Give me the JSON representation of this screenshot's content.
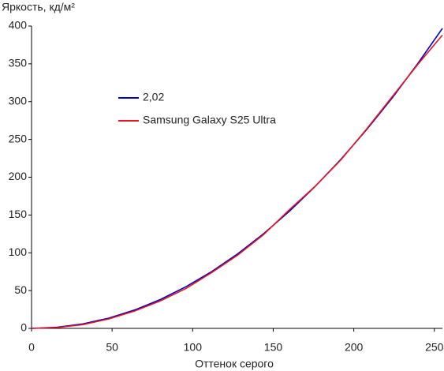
{
  "chart_data": {
    "type": "line",
    "y_label": "Яркость, кд/м²",
    "x_label": "Оттенок серого",
    "x": [
      0,
      16,
      32,
      48,
      64,
      80,
      96,
      112,
      128,
      144,
      160,
      176,
      192,
      208,
      224,
      240,
      255
    ],
    "series": [
      {
        "name": "2,02",
        "color": "#0000cc",
        "values": [
          0,
          1.5,
          6,
          13.6,
          24.3,
          38.2,
          55.2,
          75.4,
          98.7,
          125.2,
          154.9,
          187.8,
          223.7,
          263.1,
          305.4,
          351.3,
          397
        ]
      },
      {
        "name": "Samsung Galaxy S25 Ultra",
        "color": "#e8141e",
        "values": [
          0,
          1,
          5,
          12.5,
          23,
          36.5,
          53,
          74,
          97,
          124,
          157,
          188,
          223,
          264,
          307,
          350,
          388
        ]
      }
    ],
    "xlim": [
      0,
      255
    ],
    "ylim": [
      0,
      400
    ],
    "xticks": [
      0,
      50,
      100,
      150,
      200,
      250
    ],
    "yticks": [
      0,
      50,
      100,
      150,
      200,
      250,
      300,
      350,
      400
    ],
    "grid": false
  }
}
